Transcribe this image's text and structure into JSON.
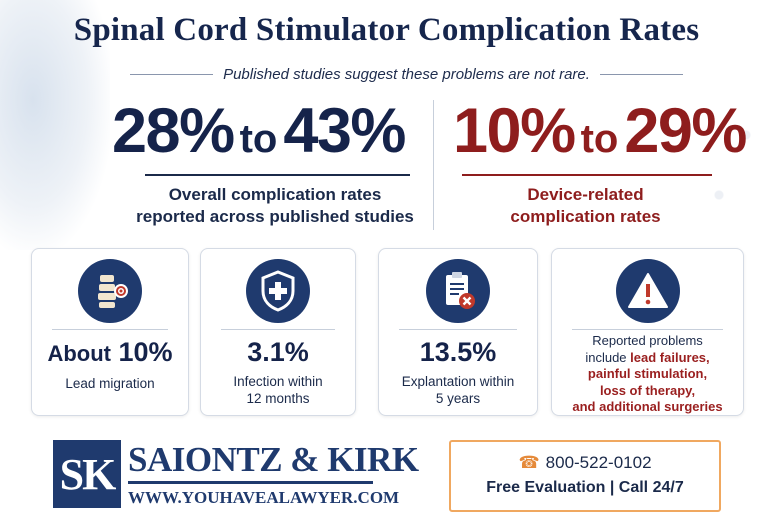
{
  "title": "Spinal Cord Stimulator Complication Rates",
  "subtitle": "Published studies suggest these problems are not rare.",
  "stats": {
    "overall": {
      "low": "28%",
      "to": "to",
      "high": "43%",
      "description_line1": "Overall complication rates",
      "description_line2": "reported across published studies"
    },
    "device": {
      "low": "10%",
      "to": "to",
      "high": "29%",
      "description_line1": "Device-related",
      "description_line2": "complication rates"
    }
  },
  "cards": [
    {
      "icon": "spine-target-icon",
      "metric_prefix": "About",
      "metric": "10%",
      "label_line1": "Lead migration",
      "label_line2": ""
    },
    {
      "icon": "shield-cross-icon",
      "metric": "3.1%",
      "label_line1": "Infection within",
      "label_line2": "12 months"
    },
    {
      "icon": "clipboard-x-icon",
      "metric": "13.5%",
      "label_line1": "Explantation within",
      "label_line2": "5 years"
    },
    {
      "icon": "warning-icon",
      "text_line1": "Reported problems",
      "text_line2_prefix": "include",
      "text_line2_red": "lead failures,",
      "text_line3_red": "painful stimulation,",
      "text_line4_red": "loss of therapy,",
      "text_line5_red": "and additional surgeries"
    }
  ],
  "firm": {
    "logo_letters": "SK",
    "name": "SAIONTZ & KIRK",
    "url": "WWW.YOUHAVEALAWYER.COM"
  },
  "contact": {
    "phone": "800-522-0102",
    "cta": "Free Evaluation | Call 24/7"
  },
  "colors": {
    "navy": "#15234a",
    "red": "#8e1d1d",
    "accent_orange": "#f0a860"
  }
}
